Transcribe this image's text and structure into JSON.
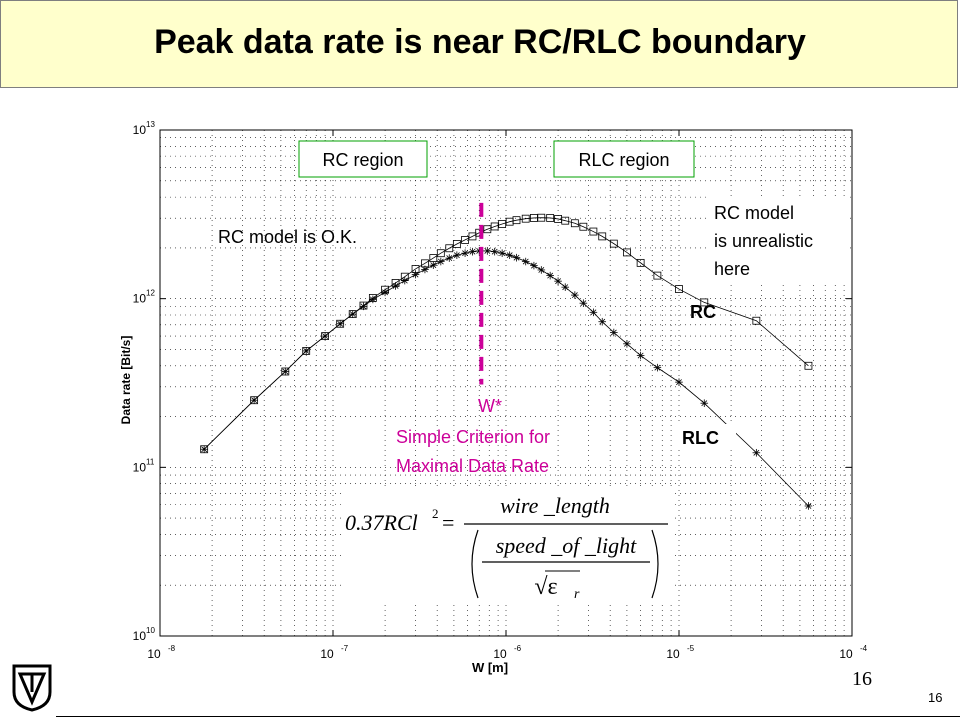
{
  "slide": {
    "title": "Peak data rate is near RC/RLC boundary",
    "page_number": "16",
    "page_number_small": "16"
  },
  "colors": {
    "title_bg": "#ffffcc",
    "criterion": "#cc0099",
    "region_box_border": "#00a000"
  },
  "annotations": {
    "rc_region": "RC region",
    "rlc_region": "RLC region",
    "rc_ok": "RC model is O.K.",
    "rc_unrealistic": [
      "RC model",
      "is unrealistic",
      "here"
    ],
    "rc_curve_label": "RC",
    "rlc_curve_label": "RLC",
    "w_star": "W*",
    "criterion": [
      "Simple Criterion for",
      "Maximal Data Rate"
    ]
  },
  "chart_data": {
    "type": "line",
    "xlabel": "W [m]",
    "ylabel": "Data rate [Bit/s]",
    "xscale": "log",
    "yscale": "log",
    "xlim": [
      1e-08,
      0.0001
    ],
    "ylim": [
      10000000000.0,
      10000000000000.0
    ],
    "grid": true,
    "x_ticks": [
      {
        "base": "10",
        "exp": "-8",
        "value": 1e-08
      },
      {
        "base": "10",
        "exp": "-7",
        "value": 1e-07
      },
      {
        "base": "10",
        "exp": "-6",
        "value": 1e-06
      },
      {
        "base": "10",
        "exp": "-5",
        "value": 1e-05
      },
      {
        "base": "10",
        "exp": "-4",
        "value": 0.0001
      }
    ],
    "y_ticks": [
      {
        "base": "10",
        "exp": "10",
        "value": 10000000000.0
      },
      {
        "base": "10",
        "exp": "11",
        "value": 100000000000.0
      },
      {
        "base": "10",
        "exp": "12",
        "value": 1000000000000.0
      },
      {
        "base": "10",
        "exp": "13",
        "value": 10000000000000.0
      }
    ],
    "series": [
      {
        "name": "RC",
        "marker": "square",
        "x": [
          1.8e-08,
          3.5e-08,
          5.3e-08,
          7e-08,
          9e-08,
          1.1e-07,
          1.3e-07,
          1.5e-07,
          1.7e-07,
          2e-07,
          2.3e-07,
          2.6e-07,
          3e-07,
          3.4e-07,
          3.8e-07,
          4.2e-07,
          4.7e-07,
          5.2e-07,
          5.8e-07,
          6.4e-07,
          7e-07,
          7.8e-07,
          8.6e-07,
          9.5e-07,
          1.05e-06,
          1.15e-06,
          1.3e-06,
          1.45e-06,
          1.6e-06,
          1.8e-06,
          2e-06,
          2.2e-06,
          2.5e-06,
          2.8e-06,
          3.2e-06,
          3.6e-06,
          4.2e-06,
          5e-06,
          6e-06,
          7.5e-06,
          1e-05,
          1.4e-05,
          2.8e-05,
          5.6e-05
        ],
        "y": [
          128000000000.0,
          250000000000.0,
          370000000000.0,
          490000000000.0,
          600000000000.0,
          710000000000.0,
          810000000000.0,
          910000000000.0,
          1010000000000.0,
          1130000000000.0,
          1240000000000.0,
          1350000000000.0,
          1500000000000.0,
          1620000000000.0,
          1740000000000.0,
          1860000000000.0,
          1990000000000.0,
          2110000000000.0,
          2230000000000.0,
          2340000000000.0,
          2460000000000.0,
          2580000000000.0,
          2680000000000.0,
          2770000000000.0,
          2860000000000.0,
          2920000000000.0,
          2980000000000.0,
          3010000000000.0,
          3020000000000.0,
          3010000000000.0,
          2970000000000.0,
          2900000000000.0,
          2800000000000.0,
          2670000000000.0,
          2500000000000.0,
          2340000000000.0,
          2120000000000.0,
          1880000000000.0,
          1630000000000.0,
          1370000000000.0,
          1140000000000.0,
          950000000000.0,
          740000000000.0,
          400000000000.0
        ]
      },
      {
        "name": "RLC",
        "marker": "asterisk",
        "x": [
          1.8e-08,
          3.5e-08,
          5.3e-08,
          7e-08,
          9e-08,
          1.1e-07,
          1.3e-07,
          1.5e-07,
          1.7e-07,
          2e-07,
          2.3e-07,
          2.6e-07,
          3e-07,
          3.4e-07,
          3.8e-07,
          4.2e-07,
          4.7e-07,
          5.2e-07,
          5.8e-07,
          6.4e-07,
          7e-07,
          7.8e-07,
          8.6e-07,
          9.5e-07,
          1.05e-06,
          1.15e-06,
          1.3e-06,
          1.45e-06,
          1.6e-06,
          1.8e-06,
          2e-06,
          2.2e-06,
          2.5e-06,
          2.8e-06,
          3.2e-06,
          3.6e-06,
          4.2e-06,
          5e-06,
          6e-06,
          7.5e-06,
          1e-05,
          1.4e-05,
          2.8e-05,
          5.6e-05
        ],
        "y": [
          128000000000.0,
          250000000000.0,
          370000000000.0,
          490000000000.0,
          600000000000.0,
          710000000000.0,
          810000000000.0,
          900000000000.0,
          990000000000.0,
          1090000000000.0,
          1190000000000.0,
          1280000000000.0,
          1390000000000.0,
          1490000000000.0,
          1580000000000.0,
          1660000000000.0,
          1740000000000.0,
          1810000000000.0,
          1860000000000.0,
          1900000000000.0,
          1920000000000.0,
          1920000000000.0,
          1900000000000.0,
          1860000000000.0,
          1810000000000.0,
          1750000000000.0,
          1660000000000.0,
          1570000000000.0,
          1480000000000.0,
          1370000000000.0,
          1270000000000.0,
          1170000000000.0,
          1050000000000.0,
          940000000000.0,
          830000000000.0,
          730000000000.0,
          630000000000.0,
          540000000000.0,
          460000000000.0,
          390000000000.0,
          320000000000.0,
          240000000000.0,
          122000000000.0,
          59000000000.0
        ]
      }
    ],
    "vertical_marker": {
      "x": 7.2e-07,
      "y_range": [
        310000000000.0,
        3700000000000.0
      ],
      "style": "dashed"
    },
    "formula_lhs": "0.37RCl",
    "formula_lhs_exp": "2",
    "formula_eq": "=",
    "formula_numerator": "wire _length",
    "formula_inner_numerator": "speed _of _light",
    "formula_inner_denominator": "√ε",
    "formula_sub": "r"
  }
}
